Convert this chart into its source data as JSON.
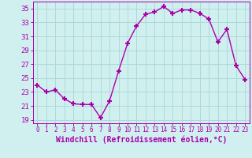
{
  "x": [
    0,
    1,
    2,
    3,
    4,
    5,
    6,
    7,
    8,
    9,
    10,
    11,
    12,
    13,
    14,
    15,
    16,
    17,
    18,
    19,
    20,
    21,
    22,
    23
  ],
  "y": [
    24.0,
    23.0,
    23.3,
    22.0,
    21.3,
    21.2,
    21.2,
    19.3,
    21.7,
    26.0,
    30.0,
    32.5,
    34.2,
    34.5,
    35.3,
    34.3,
    34.8,
    34.8,
    34.3,
    33.5,
    30.2,
    32.0,
    26.8,
    24.8
  ],
  "line_color": "#aa00aa",
  "marker": "+",
  "markersize": 4,
  "xlabel": "Windchill (Refroidissement éolien,°C)",
  "ylabel_ticks": [
    19,
    21,
    23,
    25,
    27,
    29,
    31,
    33,
    35
  ],
  "xlim": [
    -0.5,
    23.5
  ],
  "ylim": [
    18.5,
    36.0
  ],
  "bg_color": "#d0f0f0",
  "grid_color": "#b0d8d8",
  "tick_color": "#aa00aa",
  "label_color": "#aa00aa",
  "xlabel_fontsize": 7,
  "ytick_fontsize": 6.5,
  "xtick_fontsize": 5.5,
  "linewidth": 1.0
}
